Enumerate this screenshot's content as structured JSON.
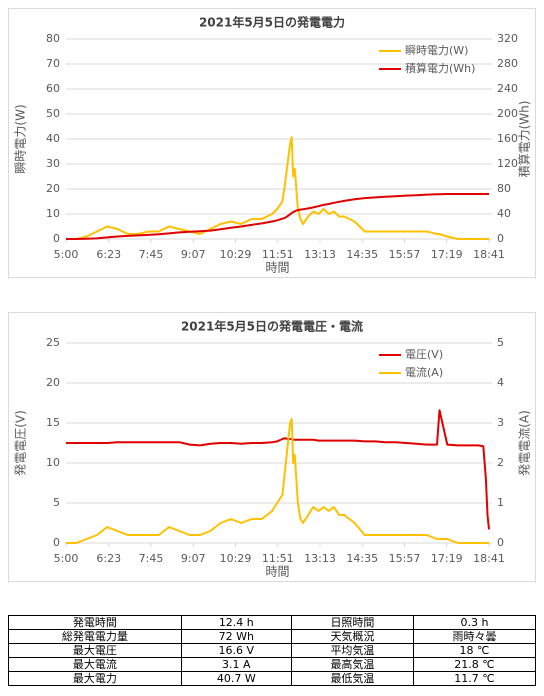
{
  "chart_data": [
    {
      "type": "line",
      "title": "2021年5月5日の発電電力",
      "xlabel": "時間",
      "ylabel": "瞬時電力(W)",
      "y2label": "積算電力(Wh)",
      "x": [
        "5:00",
        "5:20",
        "5:40",
        "6:00",
        "6:20",
        "6:40",
        "7:00",
        "7:20",
        "7:40",
        "8:00",
        "8:20",
        "8:40",
        "9:00",
        "9:20",
        "9:40",
        "10:00",
        "10:20",
        "10:40",
        "11:00",
        "11:20",
        "11:40",
        "11:50",
        "12:00",
        "12:05",
        "12:10",
        "12:15",
        "12:18",
        "12:21",
        "12:24",
        "12:27",
        "12:30",
        "12:35",
        "12:40",
        "12:50",
        "13:00",
        "13:10",
        "13:20",
        "13:30",
        "13:40",
        "13:50",
        "14:00",
        "14:20",
        "14:40",
        "15:00",
        "15:20",
        "15:40",
        "16:00",
        "16:20",
        "16:40",
        "17:00",
        "17:05",
        "17:20",
        "17:40",
        "18:00",
        "18:20",
        "18:30",
        "18:35",
        "18:38",
        "18:41"
      ],
      "xlim": [
        "5:00",
        "18:41"
      ],
      "xticks": [
        "5:00",
        "6:23",
        "7:45",
        "9:07",
        "10:29",
        "11:51",
        "13:13",
        "14:35",
        "15:57",
        "17:19",
        "18:41"
      ],
      "ylim": [
        0,
        80
      ],
      "yticks": [
        0,
        10,
        20,
        30,
        40,
        50,
        60,
        70,
        80
      ],
      "y2lim": [
        0,
        320
      ],
      "y2ticks": [
        0,
        40,
        80,
        120,
        160,
        200,
        240,
        280,
        320
      ],
      "grid": true,
      "legend": "upper right",
      "series": [
        {
          "name": "瞬時電力(W)",
          "color": "#ffc000",
          "values": [
            0,
            0,
            1,
            3,
            5,
            4,
            2,
            2,
            3,
            3,
            5,
            4,
            3,
            2,
            4,
            6,
            7,
            6,
            8,
            8,
            10,
            12,
            15,
            22,
            30,
            38,
            40.7,
            25,
            28,
            20,
            12,
            8,
            6,
            9,
            11,
            10,
            12,
            10,
            11,
            9,
            9,
            7,
            3,
            3,
            3,
            3,
            3,
            3,
            3,
            2,
            2,
            1,
            0,
            0,
            0,
            0,
            0,
            0,
            0
          ]
        },
        {
          "name": "積算電力(Wh)",
          "color": "#e00000",
          "axis": "y2",
          "values": [
            0,
            0,
            0.3,
            1,
            2.5,
            4,
            5,
            5.7,
            6.5,
            7.5,
            9,
            10.5,
            11.5,
            12.3,
            13.5,
            15.5,
            18,
            20,
            22.5,
            25,
            28,
            30,
            32.5,
            34,
            36.5,
            39.5,
            41.5,
            43,
            44.3,
            45.5,
            46.3,
            47,
            47.6,
            49,
            50.5,
            52.5,
            54.5,
            56,
            58,
            59.5,
            61,
            63.5,
            65.5,
            66.5,
            67.5,
            68.5,
            69.5,
            70,
            71,
            71.5,
            71.7,
            72,
            72,
            72,
            72,
            72,
            72,
            72,
            72
          ]
        }
      ]
    },
    {
      "type": "line",
      "title": "2021年5月5日の発電電圧・電流",
      "xlabel": "時間",
      "ylabel": "発電電圧(V)",
      "y2label": "発電電流(A)",
      "x": [
        "5:00",
        "5:20",
        "5:40",
        "6:00",
        "6:20",
        "6:40",
        "7:00",
        "7:20",
        "7:40",
        "8:00",
        "8:20",
        "8:40",
        "9:00",
        "9:20",
        "9:40",
        "10:00",
        "10:20",
        "10:40",
        "11:00",
        "11:20",
        "11:40",
        "11:50",
        "12:00",
        "12:05",
        "12:10",
        "12:15",
        "12:18",
        "12:21",
        "12:24",
        "12:27",
        "12:30",
        "12:35",
        "12:40",
        "12:50",
        "13:00",
        "13:10",
        "13:20",
        "13:30",
        "13:40",
        "13:50",
        "14:00",
        "14:20",
        "14:40",
        "15:00",
        "15:20",
        "15:40",
        "16:00",
        "16:20",
        "16:40",
        "17:00",
        "17:05",
        "17:20",
        "17:40",
        "18:00",
        "18:20",
        "18:30",
        "18:35",
        "18:38",
        "18:41"
      ],
      "xlim": [
        "5:00",
        "18:41"
      ],
      "xticks": [
        "5:00",
        "6:23",
        "7:45",
        "9:07",
        "10:29",
        "11:51",
        "13:13",
        "14:35",
        "15:57",
        "17:19",
        "18:41"
      ],
      "ylim": [
        0,
        25
      ],
      "yticks": [
        0,
        5,
        10,
        15,
        20,
        25
      ],
      "y2lim": [
        0,
        5
      ],
      "y2ticks": [
        0,
        1,
        2,
        3,
        4,
        5
      ],
      "grid": true,
      "legend": "upper right",
      "series": [
        {
          "name": "電圧(V)",
          "color": "#e00000",
          "values": [
            12.5,
            12.5,
            12.5,
            12.5,
            12.5,
            12.6,
            12.6,
            12.6,
            12.6,
            12.6,
            12.6,
            12.6,
            12.3,
            12.2,
            12.4,
            12.5,
            12.5,
            12.4,
            12.5,
            12.5,
            12.6,
            12.7,
            13.0,
            13.1,
            13.0,
            13.0,
            13.0,
            12.9,
            12.9,
            12.9,
            12.9,
            12.9,
            12.9,
            12.9,
            12.9,
            12.8,
            12.8,
            12.8,
            12.8,
            12.8,
            12.8,
            12.8,
            12.7,
            12.7,
            12.6,
            12.6,
            12.5,
            12.4,
            12.3,
            12.3,
            16.6,
            12.3,
            12.2,
            12.2,
            12.2,
            12.1,
            8,
            3.5,
            1.7
          ]
        },
        {
          "name": "電流(A)",
          "color": "#ffc000",
          "axis": "y2",
          "values": [
            0,
            0,
            0.1,
            0.2,
            0.4,
            0.3,
            0.2,
            0.2,
            0.2,
            0.2,
            0.4,
            0.3,
            0.2,
            0.2,
            0.3,
            0.5,
            0.6,
            0.5,
            0.6,
            0.6,
            0.8,
            1.0,
            1.2,
            1.8,
            2.4,
            3.0,
            3.1,
            2.0,
            2.2,
            1.6,
            1.0,
            0.6,
            0.5,
            0.7,
            0.9,
            0.8,
            0.9,
            0.8,
            0.9,
            0.7,
            0.7,
            0.5,
            0.2,
            0.2,
            0.2,
            0.2,
            0.2,
            0.2,
            0.2,
            0.1,
            0.1,
            0.1,
            0,
            0,
            0,
            0,
            0,
            0,
            0
          ]
        }
      ]
    }
  ],
  "table": {
    "rows": [
      [
        "発電時間",
        "12.4 h",
        "日照時間",
        "0.3 h"
      ],
      [
        "総発電電力量",
        "72 Wh",
        "天気概況",
        "雨時々曇"
      ],
      [
        "最大電圧",
        "16.6 V",
        "平均気温",
        "18 ℃"
      ],
      [
        "最大電流",
        "3.1 A",
        "最高気温",
        "21.8 ℃"
      ],
      [
        "最大電力",
        "40.7 W",
        "最低気温",
        "11.7 ℃"
      ]
    ]
  }
}
